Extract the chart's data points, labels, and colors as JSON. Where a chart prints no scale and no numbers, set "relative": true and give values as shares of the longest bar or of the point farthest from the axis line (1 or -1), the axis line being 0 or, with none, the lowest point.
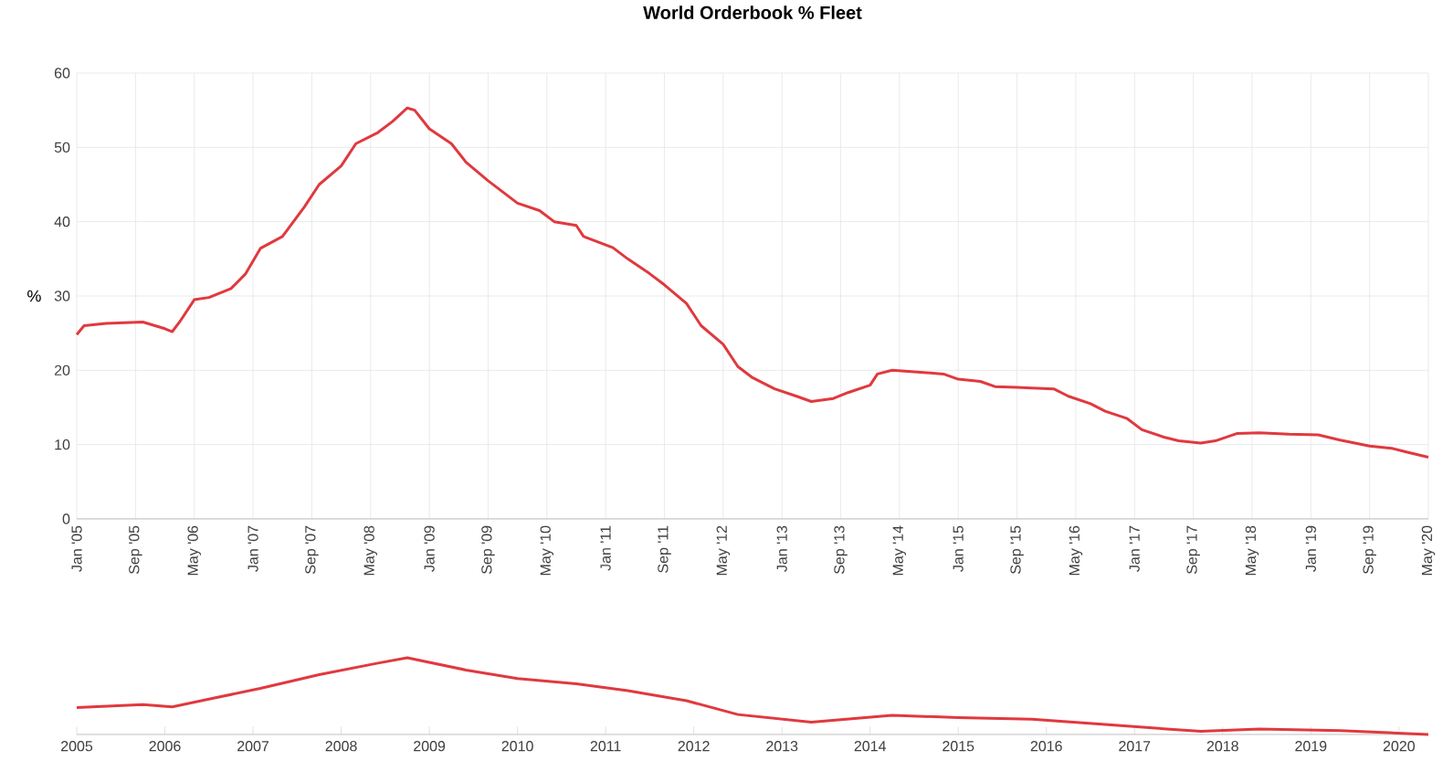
{
  "chart_data": [
    {
      "type": "line",
      "title": "World Orderbook % Fleet",
      "ylabel": "%",
      "color": "#e0393e",
      "grid": true,
      "x": [
        "2005-01",
        "2005-02",
        "2005-05",
        "2005-10",
        "2006-01",
        "2006-02",
        "2006-03",
        "2006-05",
        "2006-07",
        "2006-10",
        "2006-12",
        "2007-02",
        "2007-05",
        "2007-08",
        "2007-10",
        "2008-01",
        "2008-03",
        "2008-06",
        "2008-08",
        "2008-10",
        "2008-11",
        "2009-01",
        "2009-04",
        "2009-06",
        "2009-09",
        "2009-11",
        "2010-01",
        "2010-04",
        "2010-06",
        "2010-09",
        "2010-10",
        "2011-02",
        "2011-04",
        "2011-07",
        "2011-09",
        "2011-12",
        "2012-02",
        "2012-05",
        "2012-07",
        "2012-09",
        "2012-12",
        "2013-03",
        "2013-05",
        "2013-08",
        "2013-10",
        "2014-01",
        "2014-02",
        "2014-04",
        "2014-07",
        "2014-11",
        "2015-01",
        "2015-04",
        "2015-06",
        "2015-09",
        "2015-11",
        "2016-02",
        "2016-04",
        "2016-07",
        "2016-09",
        "2016-12",
        "2017-02",
        "2017-05",
        "2017-07",
        "2017-10",
        "2017-12",
        "2018-03",
        "2018-06",
        "2018-10",
        "2019-02",
        "2019-05",
        "2019-09",
        "2019-12",
        "2020-02",
        "2020-05"
      ],
      "values": [
        24.8,
        26.0,
        26.3,
        26.5,
        25.6,
        25.2,
        26.5,
        29.5,
        29.8,
        31.0,
        33.0,
        36.4,
        38.0,
        42.0,
        45.0,
        47.5,
        50.5,
        52.0,
        53.5,
        55.3,
        55.0,
        52.5,
        50.5,
        48.0,
        45.5,
        44.0,
        42.5,
        41.5,
        40.0,
        39.5,
        38.0,
        36.5,
        35.0,
        33.0,
        31.5,
        29.0,
        26.0,
        23.5,
        20.5,
        19.0,
        17.5,
        16.5,
        15.8,
        16.2,
        17.0,
        18.0,
        19.5,
        20.0,
        19.8,
        19.5,
        18.8,
        18.5,
        17.8,
        17.7,
        17.6,
        17.5,
        16.5,
        15.5,
        14.5,
        13.5,
        12.0,
        11.0,
        10.5,
        10.2,
        10.5,
        11.5,
        11.6,
        11.4,
        11.3,
        10.6,
        9.8,
        9.5,
        9.0,
        8.3
      ],
      "xlim": [
        "2005-01",
        "2020-05"
      ],
      "xticks": [
        {
          "value": "2005-01",
          "label": "Jan '05"
        },
        {
          "value": "2005-09",
          "label": "Sep '05"
        },
        {
          "value": "2006-05",
          "label": "May '06"
        },
        {
          "value": "2007-01",
          "label": "Jan '07"
        },
        {
          "value": "2007-09",
          "label": "Sep '07"
        },
        {
          "value": "2008-05",
          "label": "May '08"
        },
        {
          "value": "2009-01",
          "label": "Jan '09"
        },
        {
          "value": "2009-09",
          "label": "Sep '09"
        },
        {
          "value": "2010-05",
          "label": "May '10"
        },
        {
          "value": "2011-01",
          "label": "Jan '11"
        },
        {
          "value": "2011-09",
          "label": "Sep '11"
        },
        {
          "value": "2012-05",
          "label": "May '12"
        },
        {
          "value": "2013-01",
          "label": "Jan '13"
        },
        {
          "value": "2013-09",
          "label": "Sep '13"
        },
        {
          "value": "2014-05",
          "label": "May '14"
        },
        {
          "value": "2015-01",
          "label": "Jan '15"
        },
        {
          "value": "2015-09",
          "label": "Sep '15"
        },
        {
          "value": "2016-05",
          "label": "May '16"
        },
        {
          "value": "2017-01",
          "label": "Jan '17"
        },
        {
          "value": "2017-09",
          "label": "Sep '17"
        },
        {
          "value": "2018-05",
          "label": "May '18"
        },
        {
          "value": "2019-01",
          "label": "Jan '19"
        },
        {
          "value": "2019-09",
          "label": "Sep '19"
        },
        {
          "value": "2020-05",
          "label": "May '20"
        }
      ],
      "ylim": [
        0,
        60
      ],
      "yticks": [
        0,
        10,
        20,
        30,
        40,
        50,
        60
      ]
    },
    {
      "type": "line",
      "relative": true,
      "color": "#e0393e",
      "x": [
        "2005-01",
        "2005-10",
        "2006-02",
        "2006-07",
        "2007-02",
        "2007-10",
        "2008-06",
        "2008-10",
        "2009-06",
        "2010-01",
        "2010-09",
        "2011-04",
        "2011-12",
        "2012-07",
        "2013-05",
        "2014-04",
        "2015-01",
        "2015-11",
        "2016-09",
        "2017-10",
        "2018-06",
        "2019-05",
        "2020-05"
      ],
      "values": [
        0.35,
        0.39,
        0.36,
        0.46,
        0.6,
        0.78,
        0.93,
        1.0,
        0.84,
        0.73,
        0.66,
        0.57,
        0.44,
        0.26,
        0.16,
        0.25,
        0.22,
        0.2,
        0.13,
        0.04,
        0.07,
        0.05,
        0.0
      ],
      "xlim": [
        "2005-01",
        "2020-05"
      ],
      "xticks": [
        "2005",
        "2006",
        "2007",
        "2008",
        "2009",
        "2010",
        "2011",
        "2012",
        "2013",
        "2014",
        "2015",
        "2016",
        "2017",
        "2018",
        "2019",
        "2020"
      ]
    }
  ]
}
